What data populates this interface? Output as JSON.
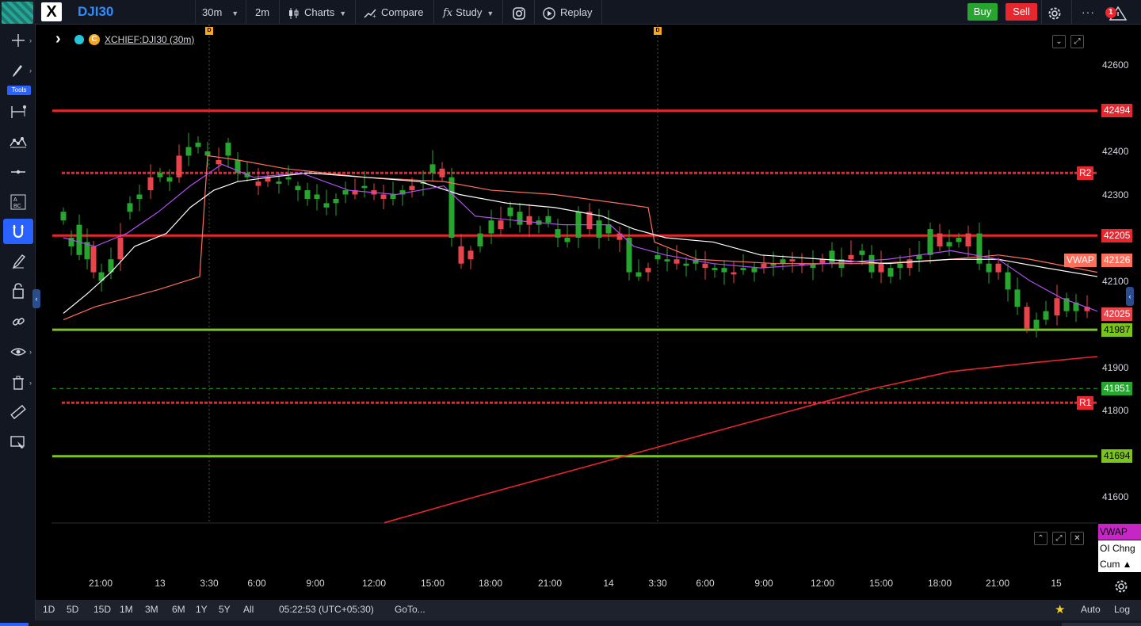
{
  "topbar": {
    "symbol": "DJI30",
    "interval": "30m",
    "interval2": "2m",
    "charts_label": "Charts",
    "compare_label": "Compare",
    "study_label": "Study",
    "replay_label": "Replay",
    "buy_label": "Buy",
    "sell_label": "Sell",
    "notification_count": "1",
    "more_label": "···"
  },
  "left_toolbar": {
    "tools_badge": "Tools",
    "items": [
      "crosshair",
      "pencil",
      "fib",
      "pattern",
      "line",
      "text",
      "magnet",
      "brush",
      "lock",
      "link",
      "eye",
      "trash",
      "ruler",
      "screenshot"
    ]
  },
  "legend": {
    "symbol_full": "XCHIEF:DJI30 (30m)",
    "coin_letter": "C",
    "d_marker": "D"
  },
  "colors": {
    "bull": "#26a62f",
    "bear": "#e8444b",
    "resistance": "#e8262e",
    "support": "#7bc41e",
    "vwap": "#ff6f5b",
    "ma_white": "#ffffff",
    "ma_purple": "#b04ef0",
    "background": "#000000"
  },
  "chart_data": {
    "type": "candlestick",
    "symbol": "XCHIEF:DJI30",
    "interval": "30m",
    "y_axis": {
      "ticks": [
        "42600",
        "42400",
        "42300",
        "42200",
        "42100",
        "41900",
        "41800",
        "41600"
      ],
      "range": [
        41540,
        42680
      ]
    },
    "x_axis": {
      "ticks": [
        "21:00",
        "13",
        "3:30",
        "6:00",
        "9:00",
        "12:00",
        "15:00",
        "18:00",
        "21:00",
        "14",
        "3:30",
        "6:00",
        "9:00",
        "12:00",
        "15:00",
        "18:00",
        "21:00",
        "15"
      ]
    },
    "levels": [
      {
        "value": 42494,
        "label": "42494",
        "style": "solid",
        "color": "#e8262e"
      },
      {
        "value": 42350,
        "label": "R2",
        "style": "dotted",
        "color": "#e8262e"
      },
      {
        "value": 42205,
        "label": "42205",
        "style": "solid",
        "color": "#e8262e"
      },
      {
        "value": 41987,
        "label": "41987",
        "style": "solid",
        "color": "#7bc41e"
      },
      {
        "value": 41851,
        "label": "41851",
        "style": "dashed",
        "color": "#26a62f"
      },
      {
        "value": 41818,
        "label": "R1",
        "style": "dotted",
        "color": "#e8262e"
      },
      {
        "value": 41694,
        "label": "41694",
        "style": "solid",
        "color": "#7bc41e"
      }
    ],
    "current_price": "42025",
    "vwap_price": "42126",
    "vwap_tag": "VWAP"
  },
  "indicators": {
    "vwap": "VWAP",
    "oi_change": "OI Chng",
    "cum": "Cum ▲"
  },
  "bottombar": {
    "ranges": [
      "1D",
      "5D",
      "15D",
      "1M",
      "3M",
      "6M",
      "1Y",
      "5Y",
      "All"
    ],
    "clock": "05:22:53 (UTC+05:30)",
    "goto": "GoTo...",
    "auto": "Auto",
    "log": "Log"
  }
}
